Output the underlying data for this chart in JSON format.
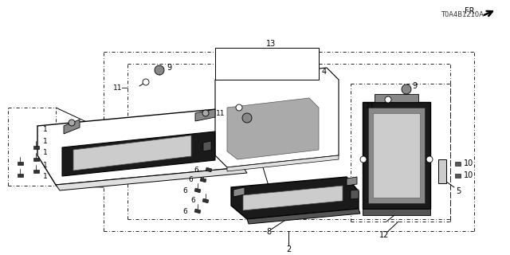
{
  "bg_color": "#ffffff",
  "lc": "#000000",
  "diagram_code": "T0A4B1210A"
}
